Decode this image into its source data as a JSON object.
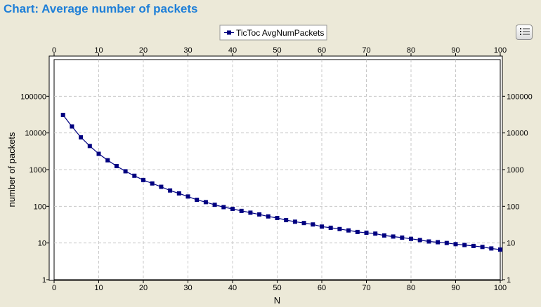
{
  "header": {
    "title": "Chart: Average number of packets"
  },
  "toolbar": {
    "legend_toggle_icon": "list-icon"
  },
  "colors": {
    "title": "#1e7fd8",
    "series": "#000080",
    "background": "#ece9d8",
    "plot_background": "#ffffff",
    "grid": "#c8c8c8"
  },
  "chart_data": {
    "type": "line",
    "title": "",
    "xlabel": "N",
    "ylabel": "number of packets",
    "xlim": [
      0,
      100
    ],
    "ylim": [
      1,
      1000000
    ],
    "yscale": "log",
    "grid": true,
    "legend_position": "top-center",
    "x_ticks": [
      "0",
      "10",
      "20",
      "30",
      "40",
      "50",
      "60",
      "70",
      "80",
      "90",
      "100"
    ],
    "y_ticks": [
      "1",
      "10",
      "100",
      "1000",
      "10000",
      "100000"
    ],
    "series": [
      {
        "name": "TicToc AvgNumPackets",
        "marker": "square",
        "x": [
          2,
          4,
          6,
          8,
          10,
          12,
          14,
          16,
          18,
          20,
          22,
          24,
          26,
          28,
          30,
          32,
          34,
          36,
          38,
          40,
          42,
          44,
          46,
          48,
          50,
          52,
          54,
          56,
          58,
          60,
          62,
          64,
          66,
          68,
          70,
          72,
          74,
          76,
          78,
          80,
          82,
          84,
          86,
          88,
          90,
          92,
          94,
          96,
          98,
          100
        ],
        "y": [
          31000,
          15000,
          7600,
          4400,
          2700,
          1800,
          1250,
          900,
          680,
          520,
          420,
          340,
          270,
          225,
          185,
          150,
          130,
          110,
          95,
          85,
          75,
          67,
          60,
          53,
          48,
          42,
          38,
          35,
          32,
          28,
          26,
          24,
          22,
          20,
          19,
          18,
          16,
          15,
          14,
          13,
          12,
          11,
          10.5,
          10,
          9.3,
          8.8,
          8.3,
          7.8,
          7.1,
          6.6
        ]
      }
    ]
  }
}
